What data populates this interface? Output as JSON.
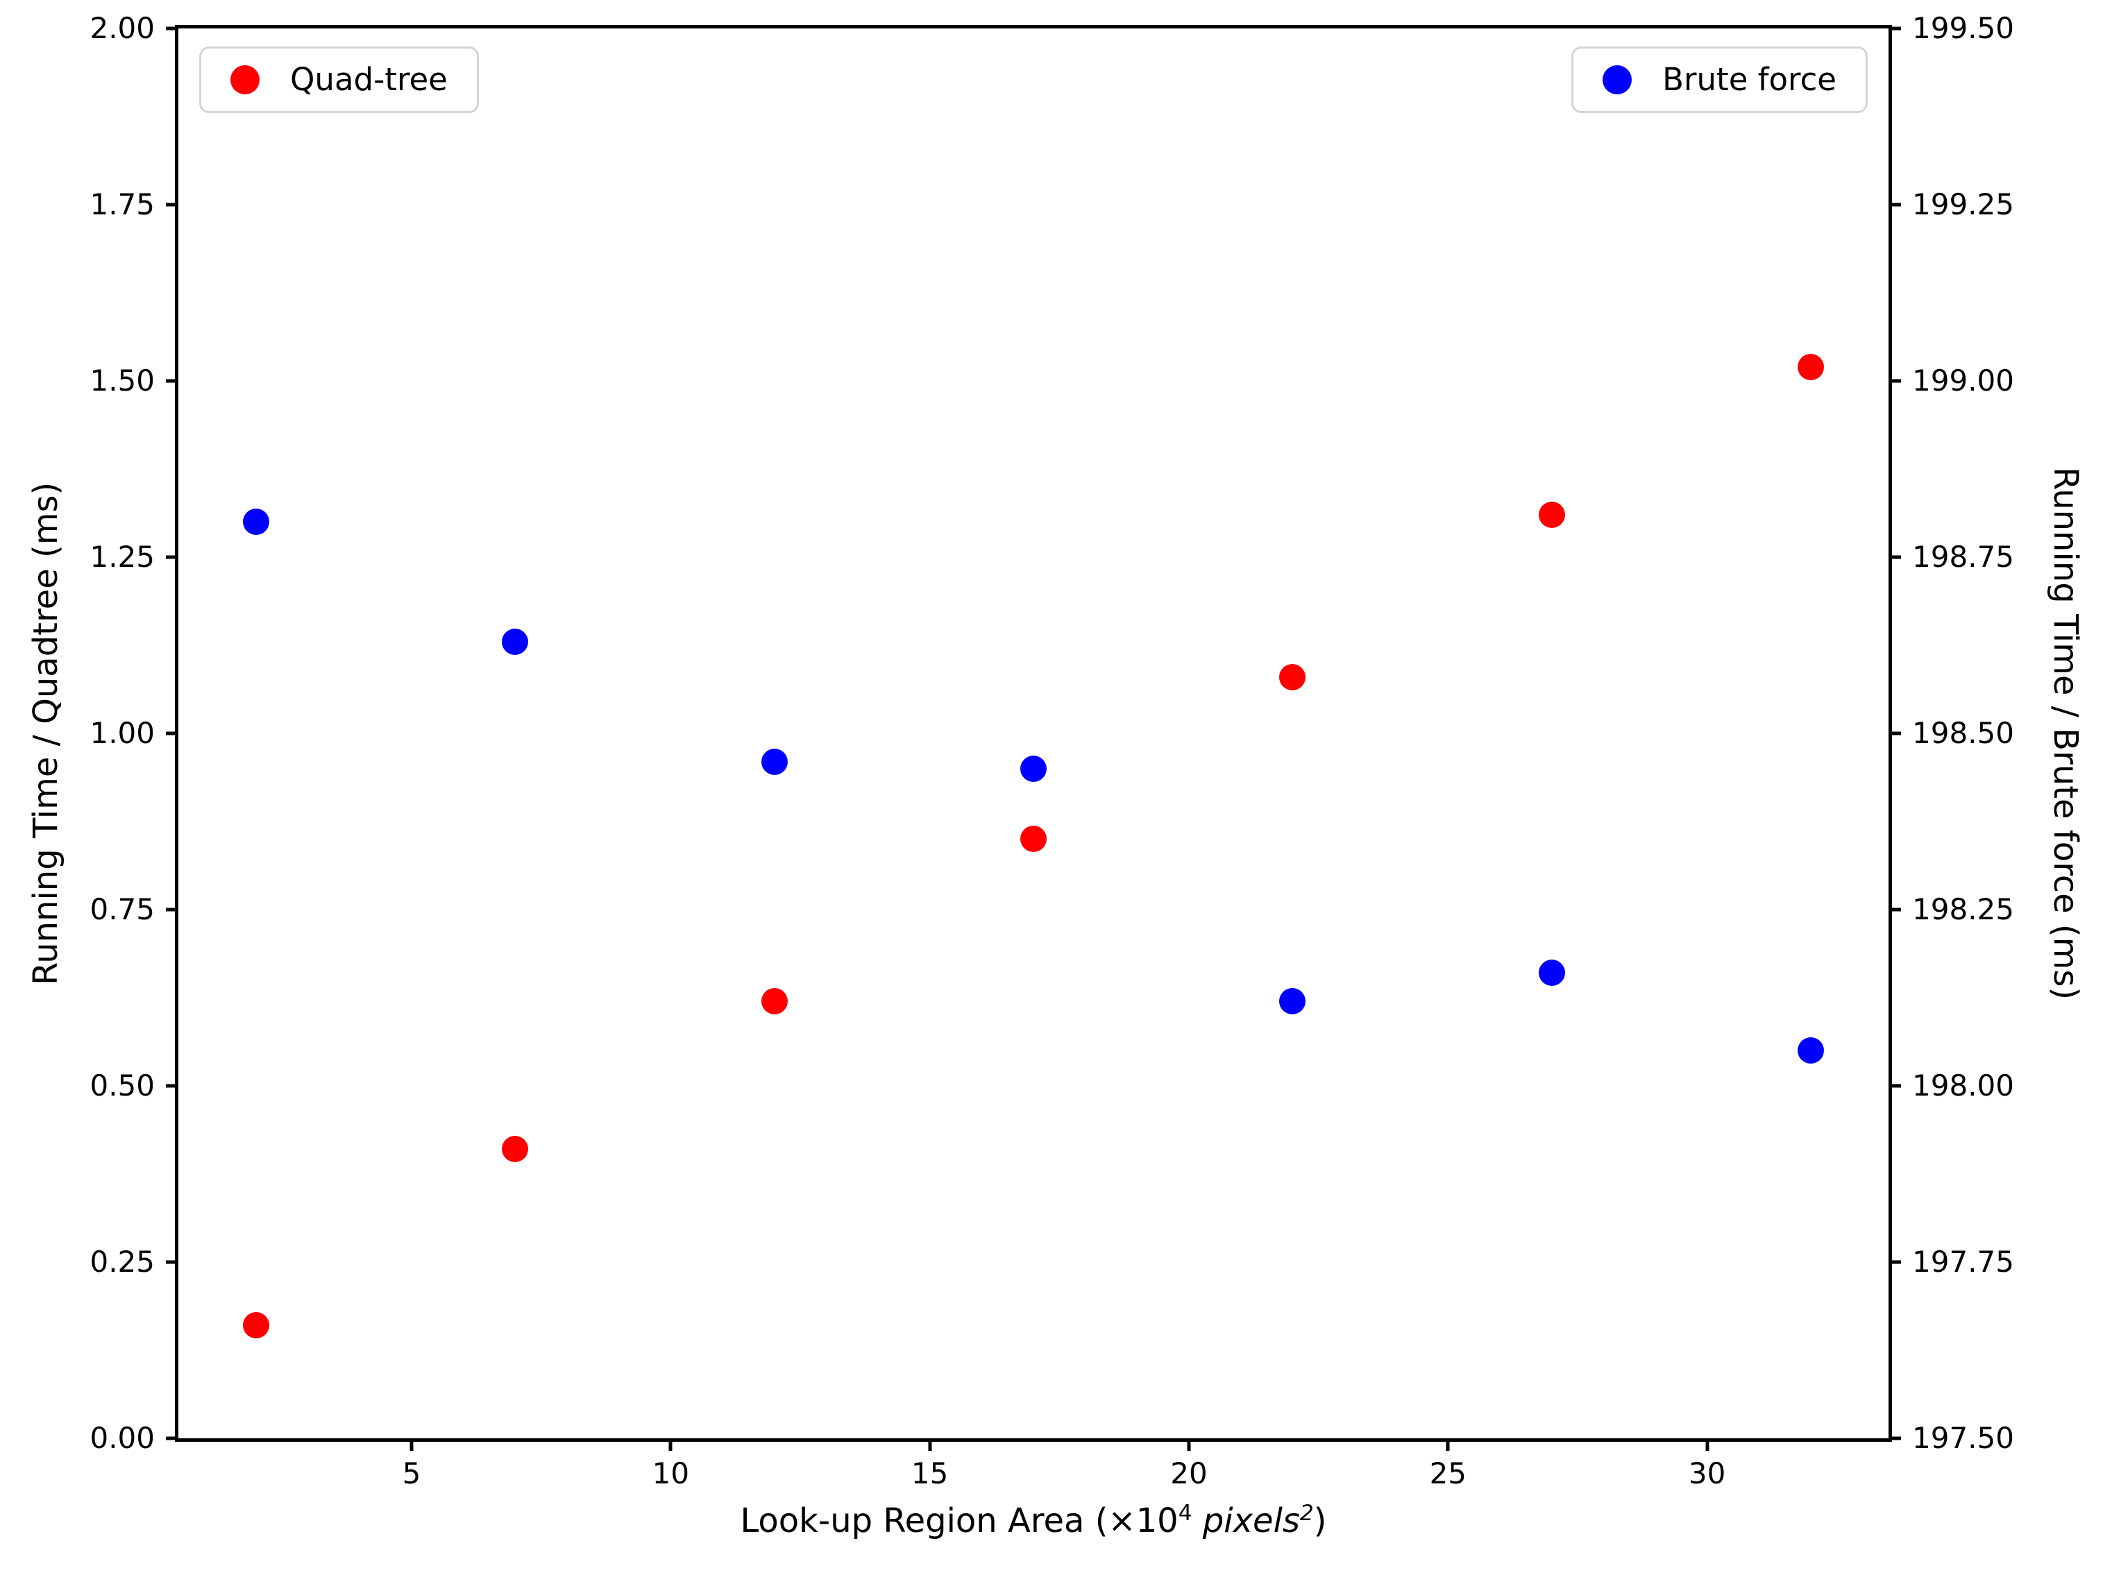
{
  "figure": {
    "xlabel": {
      "p1": "Look-up Region Area (×10",
      "sup1": "4",
      "p2": " pixels",
      "sup2": "2",
      "p3": ")"
    },
    "ylabel_left": "Running Time / Quadtree (ms)",
    "ylabel_right": "Running Time / Brute force (ms)"
  },
  "legend_left": {
    "label": "Quad-tree",
    "color": "#ff0000"
  },
  "legend_right": {
    "label": "Brute force",
    "color": "#0000ff"
  },
  "chart_data": {
    "type": "scatter",
    "x": [
      2,
      7,
      12,
      17,
      22,
      27,
      32
    ],
    "series": [
      {
        "name": "Quad-tree",
        "axis": "left",
        "color": "#ff0000",
        "values": [
          0.16,
          0.41,
          0.62,
          0.85,
          1.08,
          1.31,
          1.52
        ]
      },
      {
        "name": "Brute force",
        "axis": "right",
        "color": "#0000ff",
        "values": [
          198.8,
          198.63,
          198.46,
          198.45,
          198.12,
          198.16,
          198.05
        ]
      }
    ],
    "title": "",
    "xlabel_plain": "Look-up Region Area (×10^4 pixels^2)",
    "ylabel_left": "Running Time / Quadtree (ms)",
    "ylabel_right": "Running Time / Brute force (ms)",
    "xlim": [
      0.5,
      33.5
    ],
    "ylim_left": [
      0.0,
      2.0
    ],
    "ylim_right": [
      197.5,
      199.5
    ],
    "x_ticks": [
      5,
      10,
      15,
      20,
      25,
      30
    ],
    "y_ticks_left": [
      0.0,
      0.25,
      0.5,
      0.75,
      1.0,
      1.25,
      1.5,
      1.75,
      2.0
    ],
    "y_ticks_right": [
      197.5,
      197.75,
      198.0,
      198.25,
      198.5,
      198.75,
      199.0,
      199.25,
      199.5
    ],
    "grid": false,
    "legend_positions": [
      "upper left",
      "upper right"
    ]
  }
}
